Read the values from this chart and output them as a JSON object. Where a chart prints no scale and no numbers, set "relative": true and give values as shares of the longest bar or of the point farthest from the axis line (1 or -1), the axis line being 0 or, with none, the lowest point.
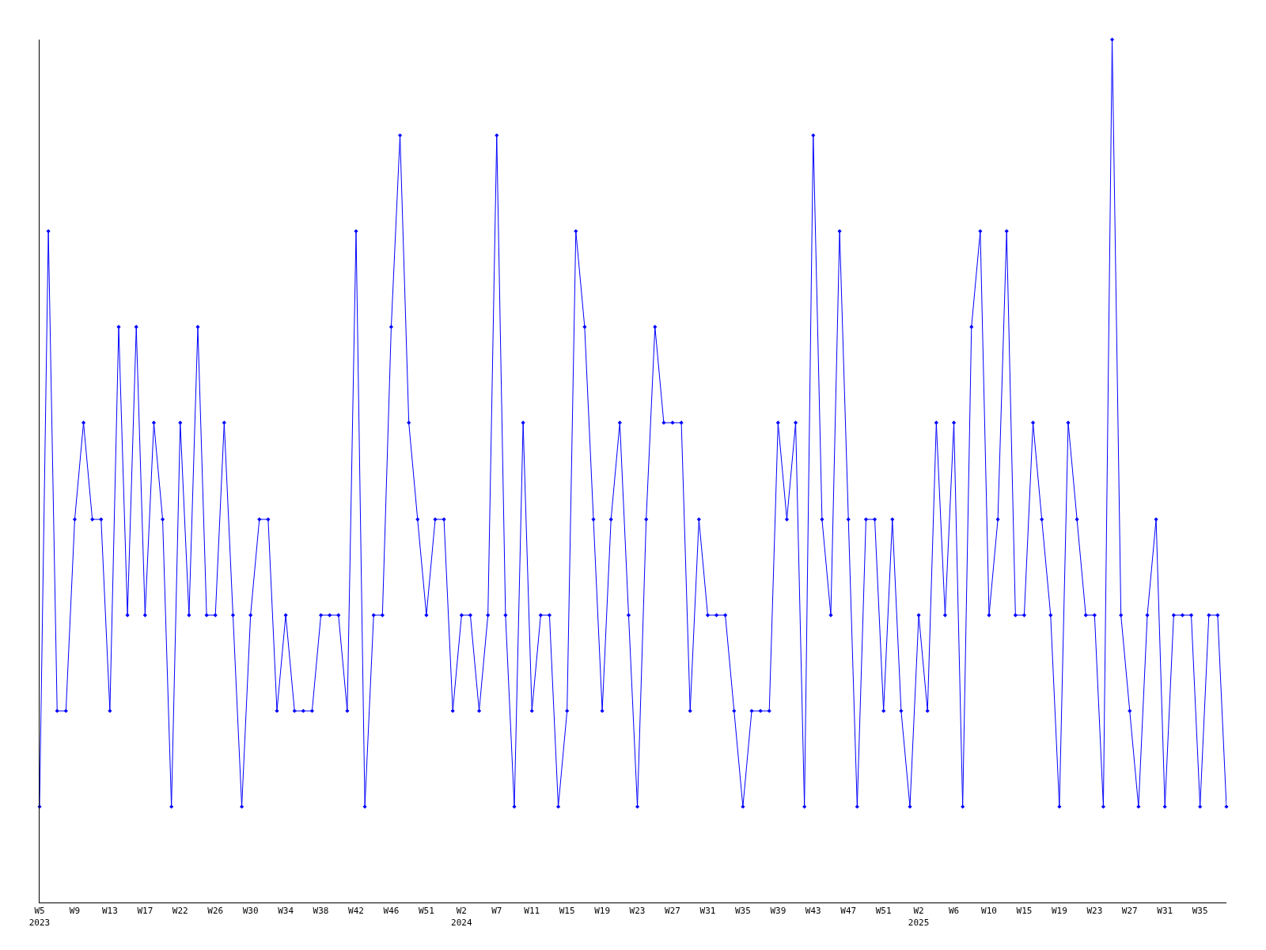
{
  "chart_data": {
    "type": "line",
    "relative": true,
    "marker": "diamond",
    "line_style": "solid",
    "categories": [
      "W5\n2023",
      null,
      null,
      null,
      "W9",
      null,
      null,
      null,
      "W13",
      null,
      null,
      null,
      "W17",
      null,
      null,
      null,
      "W22",
      null,
      null,
      null,
      "W26",
      null,
      null,
      null,
      "W30",
      null,
      null,
      null,
      "W34",
      null,
      null,
      null,
      "W38",
      null,
      null,
      null,
      "W42",
      null,
      null,
      null,
      "W46",
      null,
      null,
      null,
      "W51",
      null,
      null,
      null,
      "W2\n2024",
      null,
      null,
      null,
      "W7",
      null,
      null,
      null,
      "W11",
      null,
      null,
      null,
      "W15",
      null,
      null,
      null,
      "W19",
      null,
      null,
      null,
      "W23",
      null,
      null,
      null,
      "W27",
      null,
      null,
      null,
      "W31",
      null,
      null,
      null,
      "W35",
      null,
      null,
      null,
      "W39",
      null,
      null,
      null,
      "W43",
      null,
      null,
      null,
      "W47",
      null,
      null,
      null,
      "W51",
      null,
      null,
      null,
      "W2\n2025",
      null,
      null,
      null,
      "W6",
      null,
      null,
      null,
      "W10",
      null,
      null,
      null,
      "W15",
      null,
      null,
      null,
      "W19",
      null,
      null,
      null,
      "W23",
      null,
      null,
      null,
      "W27",
      null,
      null,
      null,
      "W31",
      null,
      null,
      null,
      "W35",
      null,
      null,
      null
    ],
    "series": [
      {
        "color": "#0000ff",
        "values": [
          0.111,
          0.778,
          0.222,
          0.222,
          0.444,
          0.556,
          0.444,
          0.444,
          0.222,
          0.667,
          0.333,
          0.667,
          0.333,
          0.556,
          0.444,
          0.111,
          0.556,
          0.333,
          0.667,
          0.333,
          0.333,
          0.556,
          0.333,
          0.111,
          0.333,
          0.444,
          0.444,
          0.222,
          0.333,
          0.222,
          0.222,
          0.222,
          0.333,
          0.333,
          0.333,
          0.222,
          0.778,
          0.111,
          0.333,
          0.333,
          0.667,
          0.889,
          0.556,
          0.444,
          0.333,
          0.444,
          0.444,
          0.222,
          0.333,
          0.333,
          0.222,
          0.333,
          0.889,
          0.333,
          0.111,
          0.556,
          0.222,
          0.333,
          0.333,
          0.111,
          0.222,
          0.778,
          0.667,
          0.444,
          0.222,
          0.444,
          0.556,
          0.333,
          0.111,
          0.444,
          0.667,
          0.556,
          0.556,
          0.556,
          0.222,
          0.444,
          0.333,
          0.333,
          0.333,
          0.222,
          0.111,
          0.222,
          0.222,
          0.222,
          0.556,
          0.444,
          0.556,
          0.111,
          0.889,
          0.444,
          0.333,
          0.778,
          0.444,
          0.111,
          0.444,
          0.444,
          0.222,
          0.444,
          0.222,
          0.111,
          0.333,
          0.222,
          0.556,
          0.333,
          0.556,
          0.111,
          0.667,
          0.778,
          0.333,
          0.444,
          0.778,
          0.333,
          0.333,
          0.556,
          0.444,
          0.333,
          0.111,
          0.556,
          0.444,
          0.333,
          0.333,
          0.111,
          1,
          0.333,
          0.222,
          0.111,
          0.333,
          0.444,
          0.111,
          0.333,
          0.333,
          0.333,
          0.111,
          0.333,
          0.333,
          0.111
        ]
      }
    ]
  }
}
